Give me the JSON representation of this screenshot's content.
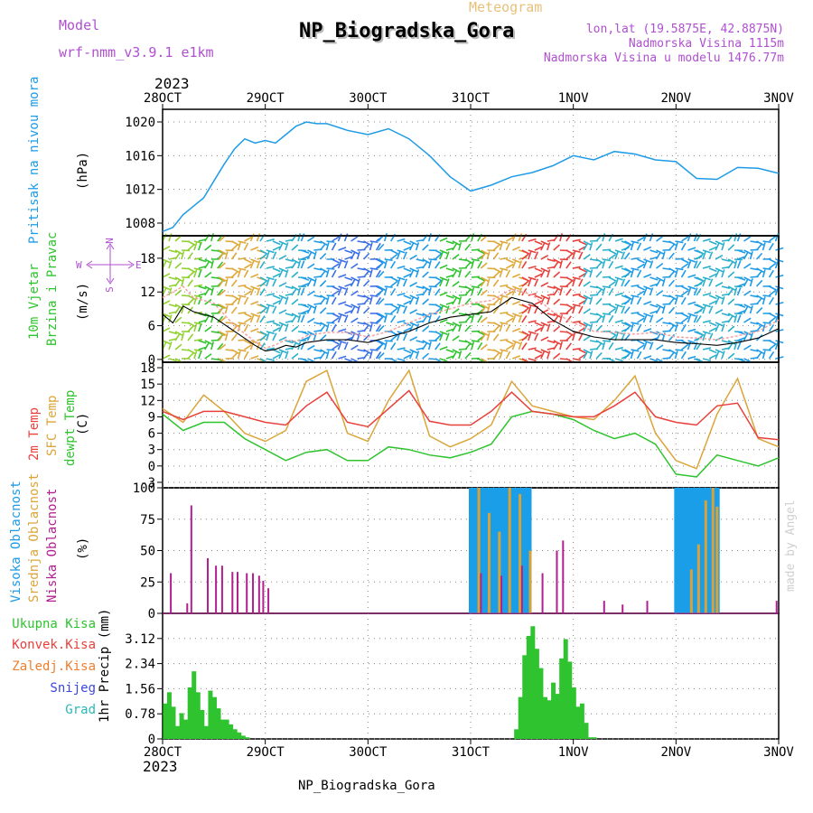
{
  "header": {
    "model_label": "Model",
    "model_name": "wrf-nmm_v3.9.1 e1km",
    "chart_kind": "Meteogram",
    "station": "NP_Biogradska_Gora",
    "coords": "lon,lat (19.5875E, 42.8875N)",
    "elevation": "Nadmorska Visina 1115m",
    "model_elevation": "Nadmorska Visina u modelu 1476.77m",
    "year_top": "2023",
    "year_bottom": "2023",
    "footer_station": "NP_Biogradska_Gora",
    "credit": "made by Angel"
  },
  "colors": {
    "pressure": "#1e9be6",
    "temp2m": "#e8413c",
    "sfc_temp": "#daa53a",
    "dewpoint": "#2fc42f",
    "high_cloud": "#1b9ee8",
    "mid_cloud": "#d8a23a",
    "low_cloud": "#b0208e",
    "precip": "#2fc42f",
    "lilac": "#b04fd0"
  },
  "chart_data": [
    {
      "type": "line",
      "panel": "pressure",
      "ylabel_left": "Pritisak na nivou mora",
      "unit": "(hPa)",
      "ylim": [
        1006.5,
        1021.5
      ],
      "yticks": [
        1008,
        1012,
        1016,
        1020
      ],
      "x_ticks": [
        "28OCT",
        "29OCT",
        "30OCT",
        "31OCT",
        "1NOV",
        "2NOV",
        "3NOV"
      ],
      "grid": true,
      "series": [
        {
          "key": "pressure",
          "x": [
            0,
            0.1,
            0.2,
            0.3,
            0.4,
            0.5,
            0.6,
            0.7,
            0.8,
            0.9,
            1.0,
            1.1,
            1.2,
            1.3,
            1.4,
            1.5,
            1.6,
            1.8,
            2.0,
            2.2,
            2.4,
            2.6,
            2.8,
            3.0,
            3.2,
            3.4,
            3.6,
            3.8,
            4.0,
            4.2,
            4.4,
            4.6,
            4.8,
            5.0,
            5.2,
            5.4,
            5.6,
            5.8,
            6.0
          ],
          "values": [
            1007,
            1007.5,
            1009,
            1010,
            1011,
            1013,
            1015,
            1016.8,
            1018,
            1017.5,
            1017.8,
            1017.5,
            1018.5,
            1019.5,
            1020,
            1019.8,
            1019.8,
            1019,
            1018.5,
            1019.2,
            1018,
            1016,
            1013.5,
            1011.8,
            1012.5,
            1013.5,
            1014,
            1014.8,
            1016,
            1015.5,
            1016.5,
            1016.2,
            1015.5,
            1015.3,
            1013.3,
            1013.2,
            1014.6,
            1014.5,
            1013.9
          ]
        }
      ]
    },
    {
      "type": "line",
      "panel": "wind",
      "ylabel_left": "10m Vjetar",
      "ylabel_left2": "Brzina i Pravac",
      "unit": "(m/s)",
      "compass": {
        "north": "N",
        "south": "S",
        "west": "W",
        "east": "E"
      },
      "ylim": [
        -0.5,
        22
      ],
      "yticks": [
        0,
        6,
        12,
        18
      ],
      "grid": true,
      "series": [
        {
          "key": "speed",
          "x": [
            0,
            0.1,
            0.2,
            0.3,
            0.5,
            0.7,
            0.9,
            1.0,
            1.1,
            1.2,
            1.3,
            1.4,
            1.6,
            1.8,
            2.0,
            2.2,
            2.4,
            2.6,
            2.8,
            3.0,
            3.2,
            3.4,
            3.6,
            3.8,
            4.0,
            4.2,
            4.4,
            4.6,
            4.8,
            5.0,
            5.2,
            5.4,
            5.6,
            5.8,
            6.0
          ],
          "values": [
            8,
            6.5,
            9.5,
            8.5,
            7.5,
            5,
            2.5,
            1.5,
            1.8,
            2.5,
            2.2,
            3,
            3.5,
            3.5,
            3,
            4,
            5,
            6.5,
            7.5,
            8,
            8.5,
            11,
            10,
            7,
            5,
            4,
            3.5,
            3.5,
            3.5,
            3,
            2.8,
            2.5,
            3,
            3.8,
            5.5
          ]
        },
        {
          "key": "gust",
          "x": [
            0,
            0.1,
            0.2,
            0.3,
            0.5,
            0.7,
            0.9,
            1.0,
            1.1,
            1.2,
            1.3,
            1.4,
            1.6,
            1.8,
            2.0,
            2.2,
            2.4,
            2.6,
            2.8,
            3.0,
            3.2,
            3.4,
            3.6,
            3.8,
            4.0,
            4.2,
            4.4,
            4.6,
            4.8,
            5.0,
            5.2,
            5.4,
            5.6,
            5.8,
            6.0
          ],
          "values": [
            11,
            12,
            13,
            11,
            10,
            6,
            3.2,
            2,
            2.6,
            3.5,
            3.2,
            4.2,
            4.8,
            4.8,
            4,
            5,
            6.5,
            8,
            9,
            10,
            10.5,
            12.5,
            11.5,
            8.5,
            6.5,
            5,
            4.8,
            4.5,
            4.8,
            4,
            3.8,
            3.5,
            4.2,
            5,
            7
          ]
        }
      ],
      "wind_color_bands": [
        {
          "from": 0.0,
          "to": 0.35,
          "color": "#8fd12e"
        },
        {
          "from": 0.35,
          "to": 0.55,
          "color": "#2fc42f"
        },
        {
          "from": 0.55,
          "to": 0.95,
          "color": "#dfa83a"
        },
        {
          "from": 0.95,
          "to": 1.35,
          "color": "#2ab0cc"
        },
        {
          "from": 1.35,
          "to": 1.65,
          "color": "#1e9be6"
        },
        {
          "from": 1.65,
          "to": 2.1,
          "color": "#3a6fe8"
        },
        {
          "from": 2.1,
          "to": 2.7,
          "color": "#1e9be6"
        },
        {
          "from": 2.7,
          "to": 3.1,
          "color": "#2fc42f"
        },
        {
          "from": 3.1,
          "to": 3.5,
          "color": "#dfa83a"
        },
        {
          "from": 3.5,
          "to": 4.1,
          "color": "#e8413c"
        },
        {
          "from": 4.1,
          "to": 4.5,
          "color": "#2ab0cc"
        },
        {
          "from": 4.5,
          "to": 5.2,
          "color": "#1e9be6"
        },
        {
          "from": 5.2,
          "to": 5.6,
          "color": "#2ab0cc"
        },
        {
          "from": 5.6,
          "to": 6.0,
          "color": "#1e9be6"
        }
      ]
    },
    {
      "type": "line",
      "panel": "temperature",
      "ylabel_left": "2m Temp",
      "ylabel_left2": "SFC Temp",
      "ylabel_left3": "dewpt Temp",
      "unit": "(C)",
      "ylim": [
        -4,
        19
      ],
      "yticks": [
        -3,
        0,
        3,
        6,
        9,
        12,
        15,
        18
      ],
      "grid": true,
      "series": [
        {
          "key": "temp2m",
          "x": [
            0,
            0.2,
            0.4,
            0.6,
            0.8,
            1.0,
            1.2,
            1.4,
            1.6,
            1.8,
            2.0,
            2.2,
            2.4,
            2.6,
            2.8,
            3.0,
            3.2,
            3.4,
            3.6,
            3.8,
            4.0,
            4.2,
            4.4,
            4.6,
            4.8,
            5.0,
            5.2,
            5.4,
            5.6,
            5.8,
            6.0
          ],
          "values": [
            10,
            8.5,
            10,
            10,
            9,
            8,
            7.5,
            11,
            13.5,
            8,
            7.2,
            10.5,
            13.8,
            8.2,
            7.5,
            7.5,
            10,
            13.5,
            10,
            9.5,
            9,
            9,
            11,
            13.5,
            9,
            8,
            7.5,
            11,
            11.5,
            5.2,
            4.8
          ]
        },
        {
          "key": "sfc_temp",
          "x": [
            0,
            0.2,
            0.4,
            0.6,
            0.8,
            1.0,
            1.2,
            1.4,
            1.6,
            1.8,
            2.0,
            2.2,
            2.4,
            2.6,
            2.8,
            3.0,
            3.2,
            3.4,
            3.6,
            3.8,
            4.0,
            4.2,
            4.4,
            4.6,
            4.8,
            5.0,
            5.2,
            5.4,
            5.6,
            5.8,
            6.0
          ],
          "values": [
            10.5,
            8,
            13,
            10,
            6,
            4.5,
            6.5,
            15.5,
            17.5,
            6,
            4.5,
            12,
            17.5,
            5.5,
            3.5,
            5,
            7.5,
            15.5,
            11,
            10,
            9,
            8.5,
            12,
            16.5,
            6,
            1,
            -0.5,
            9.5,
            16,
            5,
            3.5
          ]
        },
        {
          "key": "dewpoint",
          "x": [
            0,
            0.2,
            0.4,
            0.6,
            0.8,
            1.0,
            1.2,
            1.4,
            1.6,
            1.8,
            2.0,
            2.2,
            2.4,
            2.6,
            2.8,
            3.0,
            3.2,
            3.4,
            3.6,
            3.8,
            4.0,
            4.2,
            4.4,
            4.6,
            4.8,
            5.0,
            5.2,
            5.4,
            5.6,
            5.8,
            6.0
          ],
          "values": [
            9.5,
            6.5,
            8,
            8,
            5,
            3,
            1,
            2.5,
            3,
            1,
            1,
            3.5,
            3,
            2,
            1.5,
            2.5,
            4,
            9,
            10,
            9.5,
            8.5,
            6.5,
            5,
            6,
            4,
            -1.5,
            -2,
            2,
            1,
            0,
            1.5
          ]
        }
      ]
    },
    {
      "type": "bar",
      "panel": "clouds",
      "ylabel_left": "Visoka Oblacnost",
      "ylabel_left2": "Srednja Oblacnost",
      "ylabel_left3": "Niska Oblacnost",
      "unit": "(%)",
      "ylim": [
        0,
        100
      ],
      "yticks": [
        0,
        25,
        50,
        75,
        100
      ],
      "grid": true,
      "high_periods": [
        [
          3.0,
          3.6
        ],
        [
          5.0,
          5.42
        ]
      ],
      "high_bar_spacing": 0.024,
      "mid_bars": [
        {
          "x": 3.08,
          "v": 100
        },
        {
          "x": 3.18,
          "v": 80
        },
        {
          "x": 3.28,
          "v": 65
        },
        {
          "x": 3.38,
          "v": 100
        },
        {
          "x": 3.48,
          "v": 95
        },
        {
          "x": 3.58,
          "v": 50
        },
        {
          "x": 5.15,
          "v": 35
        },
        {
          "x": 5.22,
          "v": 55
        },
        {
          "x": 5.29,
          "v": 90
        },
        {
          "x": 5.36,
          "v": 100
        },
        {
          "x": 5.4,
          "v": 85
        }
      ],
      "low_bars": [
        {
          "x": 0.08,
          "v": 32
        },
        {
          "x": 0.24,
          "v": 8
        },
        {
          "x": 0.28,
          "v": 86
        },
        {
          "x": 0.44,
          "v": 44
        },
        {
          "x": 0.52,
          "v": 38
        },
        {
          "x": 0.58,
          "v": 38
        },
        {
          "x": 0.68,
          "v": 33
        },
        {
          "x": 0.73,
          "v": 33
        },
        {
          "x": 0.82,
          "v": 32
        },
        {
          "x": 0.88,
          "v": 32
        },
        {
          "x": 0.94,
          "v": 30
        },
        {
          "x": 0.98,
          "v": 26
        },
        {
          "x": 1.03,
          "v": 20
        },
        {
          "x": 3.1,
          "v": 32
        },
        {
          "x": 3.3,
          "v": 30
        },
        {
          "x": 3.5,
          "v": 38
        },
        {
          "x": 3.7,
          "v": 32
        },
        {
          "x": 3.84,
          "v": 50
        },
        {
          "x": 3.9,
          "v": 58
        },
        {
          "x": 4.3,
          "v": 10
        },
        {
          "x": 4.48,
          "v": 7
        },
        {
          "x": 4.72,
          "v": 10
        },
        {
          "x": 5.98,
          "v": 10
        }
      ]
    },
    {
      "type": "bar",
      "panel": "precip",
      "legend": [
        "Ukupna Kisa",
        "Konvek.Kisa",
        "Zaledj.Kisa",
        "Snijeg",
        "Grad"
      ],
      "legend_colors": [
        "#2fc42f",
        "#e8413c",
        "#f07e2c",
        "#3b46e0",
        "#2ab8b8"
      ],
      "ylabel": "1hr Precip (mm)",
      "ylim": [
        0,
        3.9
      ],
      "yticks": [
        0,
        0.78,
        1.56,
        2.34,
        3.12
      ],
      "ytick_labels": [
        "0",
        "0.78",
        "1.56",
        "2.34",
        "3.12"
      ],
      "grid": true,
      "x_ticks": [
        "28OCT",
        "29OCT",
        "30OCT",
        "31OCT",
        "1NOV",
        "2NOV",
        "3NOV"
      ],
      "bars": [
        {
          "x": 0.03,
          "v": 1.1
        },
        {
          "x": 0.07,
          "v": 1.45
        },
        {
          "x": 0.11,
          "v": 1.0
        },
        {
          "x": 0.15,
          "v": 0.4
        },
        {
          "x": 0.19,
          "v": 0.8
        },
        {
          "x": 0.23,
          "v": 0.6
        },
        {
          "x": 0.27,
          "v": 1.6
        },
        {
          "x": 0.31,
          "v": 2.1
        },
        {
          "x": 0.35,
          "v": 1.45
        },
        {
          "x": 0.39,
          "v": 0.9
        },
        {
          "x": 0.43,
          "v": 0.4
        },
        {
          "x": 0.47,
          "v": 1.5
        },
        {
          "x": 0.51,
          "v": 1.3
        },
        {
          "x": 0.55,
          "v": 0.95
        },
        {
          "x": 0.59,
          "v": 0.6
        },
        {
          "x": 0.63,
          "v": 0.6
        },
        {
          "x": 0.67,
          "v": 0.45
        },
        {
          "x": 0.71,
          "v": 0.3
        },
        {
          "x": 0.75,
          "v": 0.2
        },
        {
          "x": 0.79,
          "v": 0.1
        },
        {
          "x": 0.83,
          "v": 0.05
        },
        {
          "x": 3.45,
          "v": 0.3
        },
        {
          "x": 3.49,
          "v": 1.3
        },
        {
          "x": 3.53,
          "v": 2.6
        },
        {
          "x": 3.57,
          "v": 3.2
        },
        {
          "x": 3.61,
          "v": 3.5
        },
        {
          "x": 3.65,
          "v": 2.8
        },
        {
          "x": 3.69,
          "v": 2.2
        },
        {
          "x": 3.73,
          "v": 1.3
        },
        {
          "x": 3.77,
          "v": 1.2
        },
        {
          "x": 3.81,
          "v": 1.75
        },
        {
          "x": 3.85,
          "v": 1.4
        },
        {
          "x": 3.89,
          "v": 2.5
        },
        {
          "x": 3.93,
          "v": 3.1
        },
        {
          "x": 3.97,
          "v": 2.4
        },
        {
          "x": 4.01,
          "v": 1.6
        },
        {
          "x": 4.05,
          "v": 1.0
        },
        {
          "x": 4.09,
          "v": 1.1
        },
        {
          "x": 4.13,
          "v": 0.5
        },
        {
          "x": 4.17,
          "v": 0.05
        },
        {
          "x": 4.21,
          "v": 0.05
        }
      ]
    }
  ]
}
